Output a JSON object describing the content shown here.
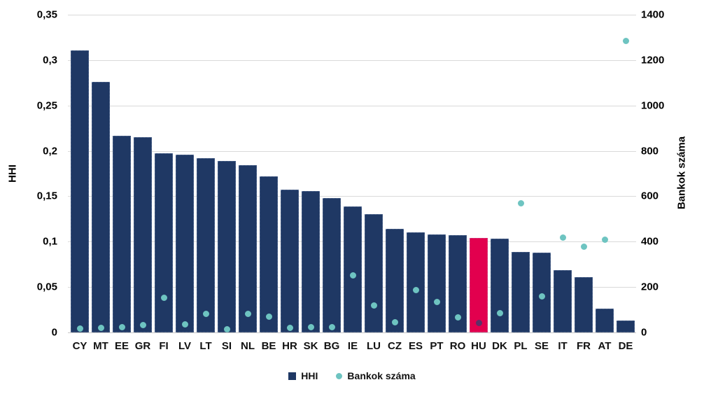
{
  "chart_data": {
    "type": "bar",
    "subtype": "combo-bar-scatter",
    "categories": [
      "CY",
      "MT",
      "EE",
      "GR",
      "FI",
      "LV",
      "LT",
      "SI",
      "NL",
      "BE",
      "HR",
      "SK",
      "BG",
      "IE",
      "LU",
      "CZ",
      "ES",
      "PT",
      "RO",
      "HU",
      "DK",
      "PL",
      "SE",
      "IT",
      "FR",
      "AT",
      "DE"
    ],
    "series": [
      {
        "name": "HHI",
        "type": "bar",
        "axis": "left",
        "color": "#1f3864",
        "values": [
          0.311,
          0.276,
          0.217,
          0.215,
          0.197,
          0.196,
          0.192,
          0.189,
          0.184,
          0.172,
          0.157,
          0.156,
          0.148,
          0.139,
          0.13,
          0.114,
          0.11,
          0.108,
          0.107,
          0.104,
          0.103,
          0.089,
          0.088,
          0.069,
          0.061,
          0.026,
          0.013
        ]
      },
      {
        "name": "Bankok száma",
        "type": "scatter",
        "axis": "right",
        "color": "#6ec4c1",
        "values": [
          18,
          19,
          23,
          33,
          154,
          34,
          82,
          15,
          82,
          68,
          21,
          22,
          24,
          250,
          118,
          46,
          186,
          133,
          65,
          42,
          85,
          570,
          158,
          418,
          377,
          408,
          1285
        ]
      }
    ],
    "highlight": {
      "category": "HU",
      "index": 19,
      "bar_color": "#e2004e",
      "dot_color": "#5e2f68"
    },
    "left_axis": {
      "title": "HHI",
      "min": 0,
      "max": 0.35,
      "tick_labels_top_to_bottom": [
        "0,35",
        "0,3",
        "0,25",
        "0,2",
        "0,15",
        "0,1",
        "0,05",
        "0"
      ]
    },
    "right_axis": {
      "title": "Bankok száma",
      "min": 0,
      "max": 1400,
      "tick_labels_top_to_bottom": [
        "1400",
        "1200",
        "1000",
        "800",
        "600",
        "400",
        "200",
        "0"
      ]
    },
    "grid": true,
    "gridline_color": "#d9d9d9",
    "legend_position": "bottom",
    "legend": {
      "items": [
        {
          "label": "HHI",
          "marker": "square",
          "color": "#1f3864"
        },
        {
          "label": "Bankok száma",
          "marker": "circle",
          "color": "#6ec4c1"
        }
      ]
    }
  }
}
